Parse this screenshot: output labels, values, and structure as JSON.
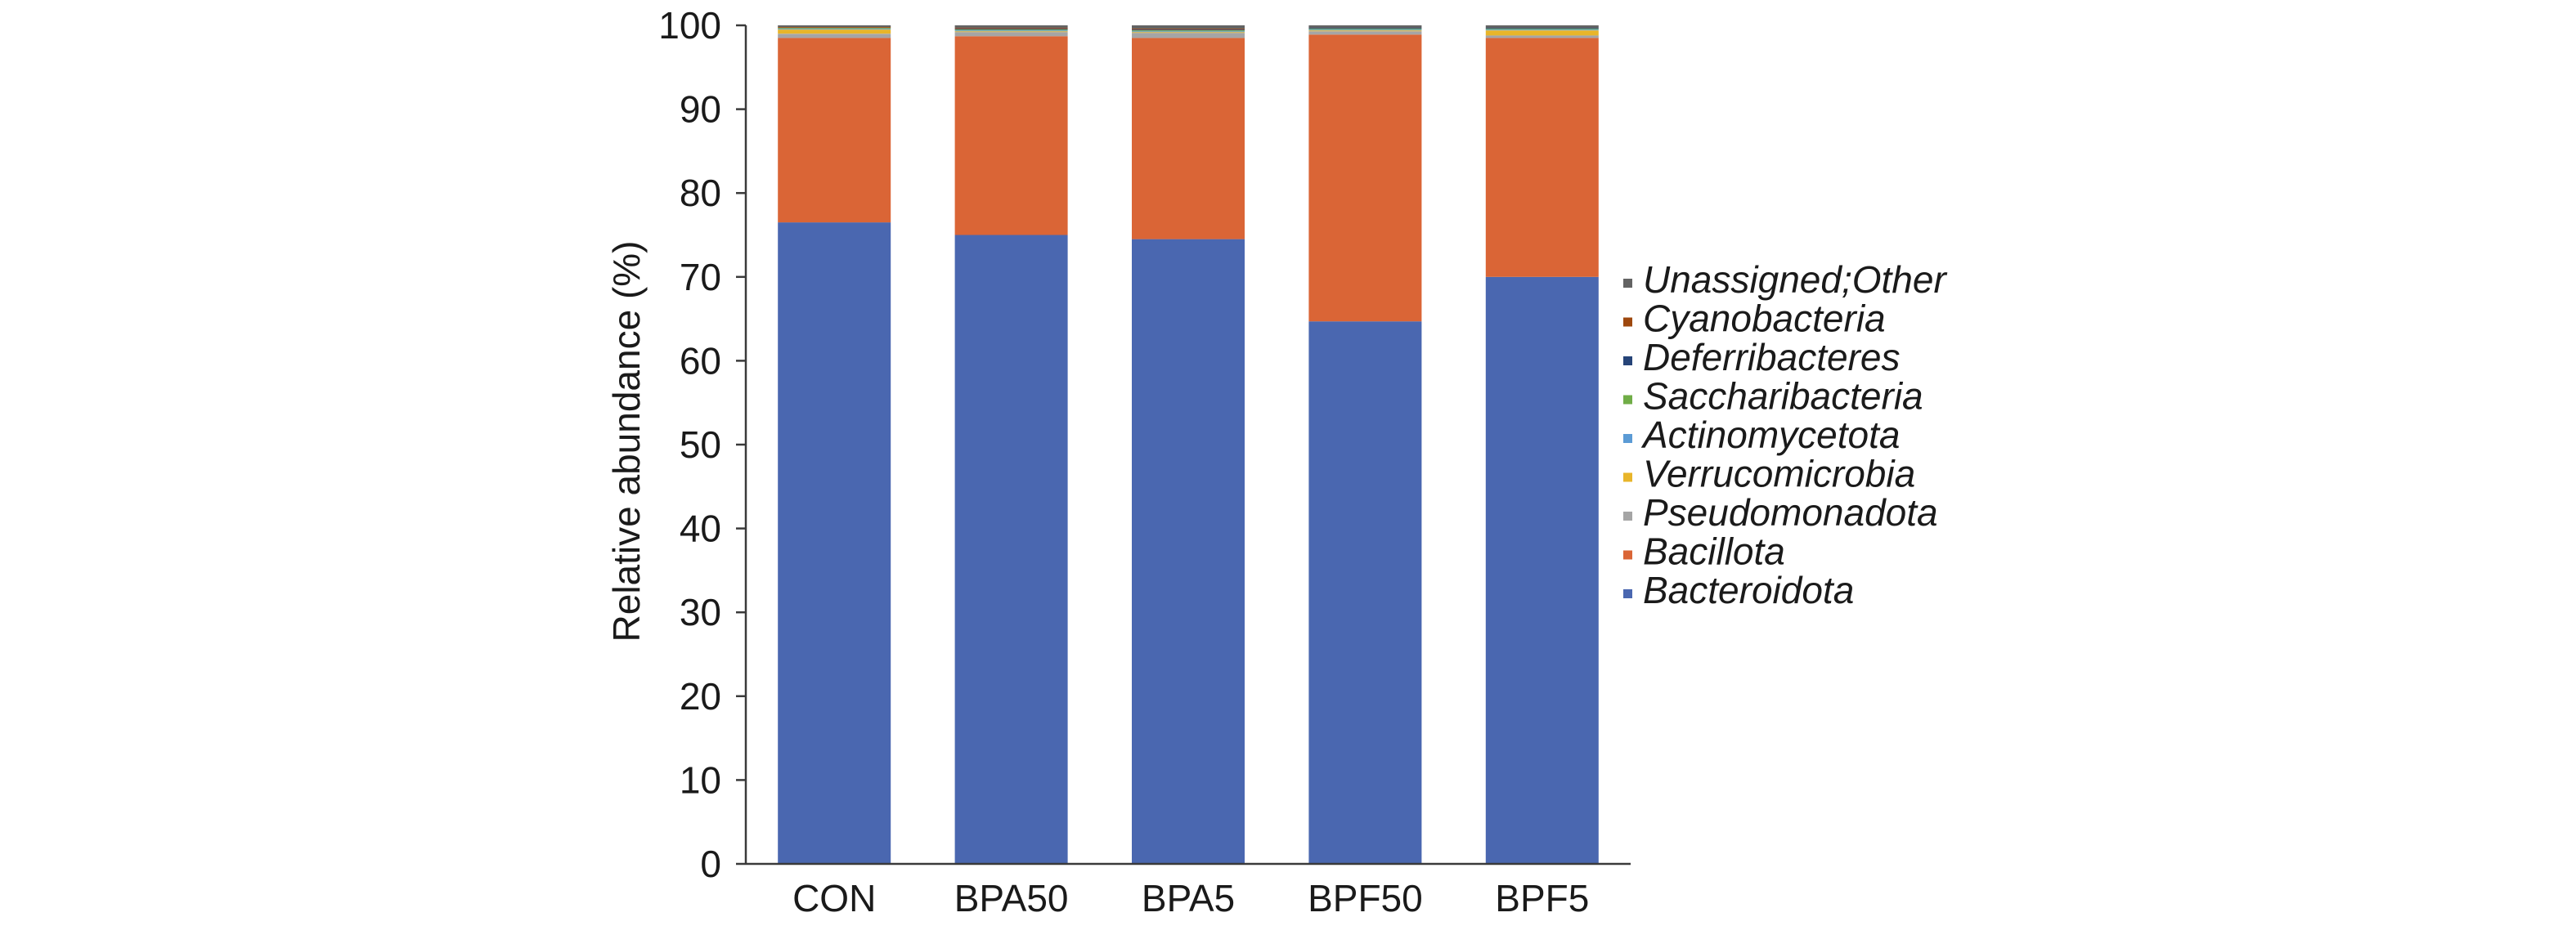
{
  "chart_data": {
    "type": "bar",
    "stacked": true,
    "title": "",
    "xlabel": "",
    "ylabel": "Relative abundance (%)",
    "ylim": [
      0,
      100
    ],
    "yticks": [
      0,
      10,
      20,
      30,
      40,
      50,
      60,
      70,
      80,
      90,
      100
    ],
    "grid": false,
    "legend_position": "right",
    "categories": [
      "CON",
      "BPA50",
      "BPA5",
      "BPF50",
      "BPF5"
    ],
    "series": [
      {
        "name": "Bacteroidota",
        "color": "#4A67B0",
        "values": [
          76.5,
          75.0,
          74.5,
          64.7,
          70.0
        ]
      },
      {
        "name": "Bacillota",
        "color": "#DA6536",
        "values": [
          22.0,
          23.7,
          24.0,
          34.2,
          28.5
        ]
      },
      {
        "name": "Pseudomonadota",
        "color": "#A5A5A5",
        "values": [
          0.5,
          0.5,
          0.6,
          0.4,
          0.3
        ]
      },
      {
        "name": "Verrucomicrobia",
        "color": "#E8B52A",
        "values": [
          0.5,
          0.1,
          0.1,
          0.1,
          0.6
        ]
      },
      {
        "name": "Actinomycetota",
        "color": "#5B9BD5",
        "values": [
          0.1,
          0.1,
          0.1,
          0.1,
          0.1
        ]
      },
      {
        "name": "Saccharibacteria",
        "color": "#70AD47",
        "values": [
          0.1,
          0.1,
          0.1,
          0.1,
          0.1
        ]
      },
      {
        "name": "Deferribacteres",
        "color": "#264478",
        "values": [
          0.0,
          0.1,
          0.1,
          0.1,
          0.1
        ]
      },
      {
        "name": "Cyanobacteria",
        "color": "#9E480E",
        "values": [
          0.1,
          0.1,
          0.1,
          0.0,
          0.0
        ]
      },
      {
        "name": "Unassigned;Other",
        "color": "#636363",
        "values": [
          0.2,
          0.3,
          0.5,
          0.5,
          0.3
        ]
      }
    ]
  }
}
